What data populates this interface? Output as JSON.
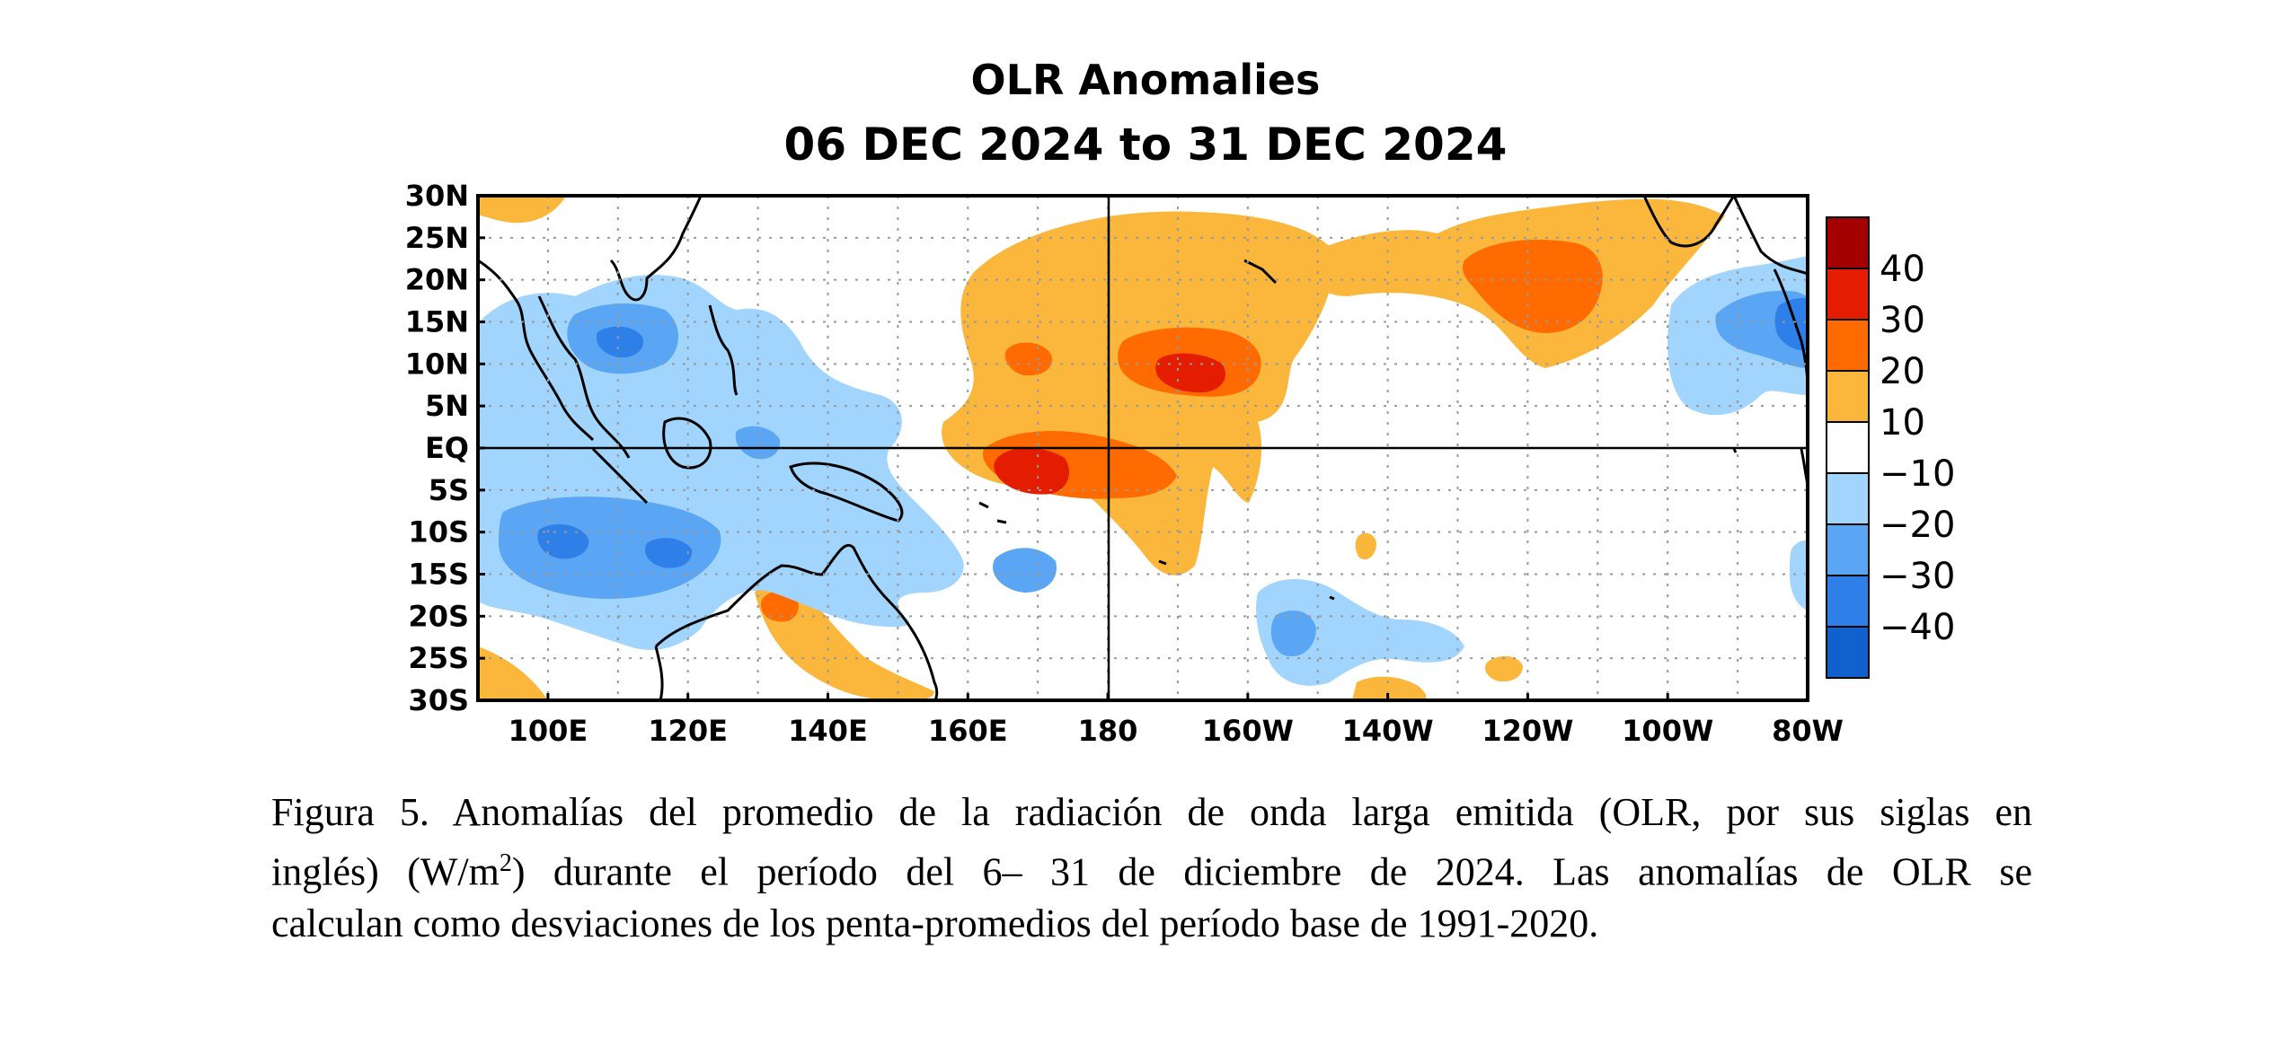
{
  "title": "OLR Anomalies",
  "subtitle": "06 DEC 2024 to 31 DEC 2024",
  "map": {
    "lat_labels": [
      "30N",
      "25N",
      "20N",
      "15N",
      "10N",
      "5N",
      "EQ",
      "5S",
      "10S",
      "15S",
      "20S",
      "25S",
      "30S"
    ],
    "lon_labels": [
      "100E",
      "120E",
      "140E",
      "160E",
      "180",
      "160W",
      "140W",
      "120W",
      "100W",
      "80W"
    ],
    "extent": {
      "lon_min": 90,
      "lon_max": 280,
      "lat_min": -30,
      "lat_max": 30
    },
    "colorbar": {
      "labels": [
        "40",
        "30",
        "20",
        "10",
        "−10",
        "−20",
        "−30",
        "−40"
      ],
      "colors": [
        "#a50000",
        "#e51d00",
        "#ff6b00",
        "#fbb73c",
        "#ffffff",
        "#a1d5fd",
        "#5aa6f4",
        "#2e7fe8",
        "#1160d0"
      ]
    },
    "colors": {
      "orange_light": "#fbb73c",
      "orange": "#ff6b00",
      "red": "#e51d00",
      "darkred": "#a50000",
      "blue_light": "#a1d5fd",
      "blue": "#5aa6f4",
      "blue_mid": "#2e7fe8",
      "blue_dark": "#1160d0"
    }
  },
  "caption": {
    "line1": "Figura 5. Anomalías del promedio de la radiación de onda larga emitida (OLR, por sus siglas en",
    "line2_a": "inglés) (W/m",
    "line2_sup": "2",
    "line2_b": ") durante el período del 6– 31 de diciembre de 2024.  Las anomalías de OLR se",
    "line3": "calculan como desviaciones de los penta-promedios del período base de 1991-2020."
  }
}
